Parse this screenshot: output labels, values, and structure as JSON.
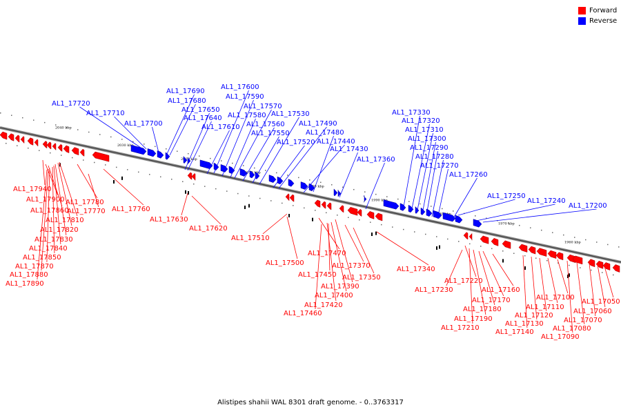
{
  "legend": {
    "forward_label": "Forward",
    "reverse_label": "Reverse",
    "forward_color": "#ff0000",
    "reverse_color": "#0000ff"
  },
  "caption": "Alistipes shahii WAL 8301 draft genome. - 0..3763317",
  "scale_labels": [
    "2040 kbp",
    "2030 kbp",
    "2020 kbp",
    "2010 kbp",
    "2000 kbp",
    "1990 kbp",
    "1980 kbp",
    "1970 kbp",
    "1960 kbp"
  ],
  "reverse_genes": [
    "AL1_17720",
    "AL1_17710",
    "AL1_17700",
    "AL1_17690",
    "AL1_17680",
    "AL1_17650",
    "AL1_17640",
    "AL1_17610",
    "AL1_17600",
    "AL1_17590",
    "AL1_17580",
    "AL1_17570",
    "AL1_17560",
    "AL1_17550",
    "AL1_17530",
    "AL1_17520",
    "AL1_17490",
    "AL1_17480",
    "AL1_17440",
    "AL1_17430",
    "AL1_17360",
    "AL1_17330",
    "AL1_17320",
    "AL1_17310",
    "AL1_17300",
    "AL1_17290",
    "AL1_17280",
    "AL1_17270",
    "AL1_17260",
    "AL1_17250",
    "AL1_17240",
    "AL1_17200"
  ],
  "forward_genes": [
    "AL1_17940",
    "AL1_17900",
    "AL1_17860",
    "AL1_17780",
    "AL1_17770",
    "AL1_17810",
    "AL1_17820",
    "AL1_17830",
    "AL1_17840",
    "AL1_17850",
    "AL1_17870",
    "AL1_17880",
    "AL1_17890",
    "AL1_17760",
    "AL1_17630",
    "AL1_17620",
    "AL1_17510",
    "AL1_17500",
    "AL1_17470",
    "AL1_17450",
    "AL1_17370",
    "AL1_17350",
    "AL1_17390",
    "AL1_17400",
    "AL1_17420",
    "AL1_17460",
    "AL1_17340",
    "AL1_17220",
    "AL1_17230",
    "AL1_17160",
    "AL1_17170",
    "AL1_17180",
    "AL1_17190",
    "AL1_17210",
    "AL1_17100",
    "AL1_17110",
    "AL1_17120",
    "AL1_17130",
    "AL1_17140",
    "AL1_17050",
    "AL1_17060",
    "AL1_17070",
    "AL1_17080",
    "AL1_17090"
  ]
}
